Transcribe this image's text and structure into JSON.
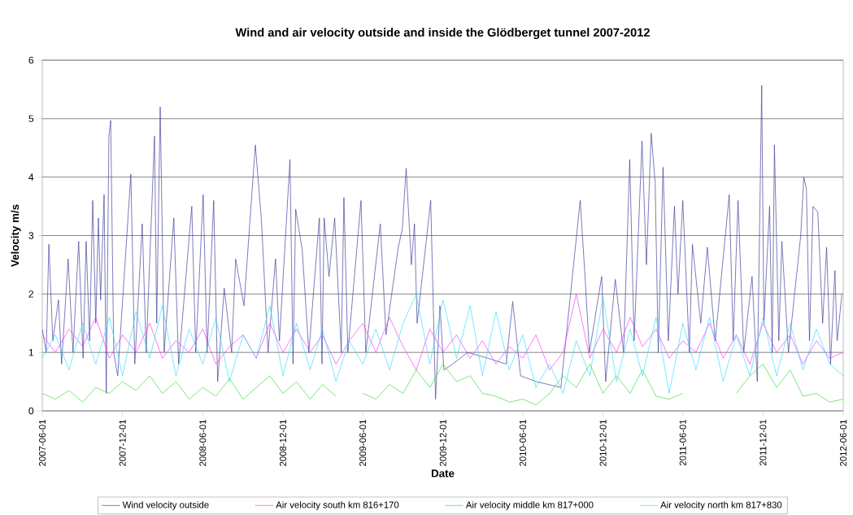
{
  "chart_data": {
    "type": "line",
    "title": "Wind and air velocity outside and inside the Glödberget tunnel 2007-2012",
    "xlabel": "Date",
    "ylabel": "Velocity m/s",
    "xlim": [
      "2007-06-01",
      "2012-06-01"
    ],
    "xticks": [
      "2007-06-01",
      "2007-12-01",
      "2008-06-01",
      "2008-12-01",
      "2009-06-01",
      "2009-12-01",
      "2010-06-01",
      "2010-12-01",
      "2011-06-01",
      "2011-12-01",
      "2012-06-01"
    ],
    "ylim": [
      0,
      6
    ],
    "yticks": [
      0,
      1,
      2,
      3,
      4,
      5,
      6
    ],
    "grid": "y",
    "legend": "bottom",
    "marker": "none",
    "line_style": "solid",
    "series": [
      {
        "name": "Wind velocity outside",
        "color": "#3a3a9a",
        "x": [
          "2007-06-01",
          "2007-06-10",
          "2007-06-16",
          "2007-06-25",
          "2007-07-08",
          "2007-07-15",
          "2007-07-30",
          "2007-08-10",
          "2007-08-23",
          "2007-09-02",
          "2007-09-09",
          "2007-09-17",
          "2007-09-24",
          "2007-10-01",
          "2007-10-07",
          "2007-10-12",
          "2007-10-20",
          "2007-10-25",
          "2007-10-31",
          "2007-11-04",
          "2007-11-11",
          "2007-11-20",
          "2007-12-20",
          "2007-12-29",
          "2008-01-15",
          "2008-01-24",
          "2008-02-12",
          "2008-02-17",
          "2008-02-25",
          "2008-03-05",
          "2008-03-27",
          "2008-04-07",
          "2008-05-07",
          "2008-05-16",
          "2008-06-02",
          "2008-06-11",
          "2008-06-26",
          "2008-07-05",
          "2008-07-20",
          "2008-08-06",
          "2008-08-15",
          "2008-09-03",
          "2008-09-29",
          "2008-10-13",
          "2008-10-28",
          "2008-11-14",
          "2008-11-23",
          "2008-12-17",
          "2008-12-24",
          "2008-12-30",
          "2009-01-14",
          "2009-01-29",
          "2009-02-22",
          "2009-02-28",
          "2009-03-05",
          "2009-03-16",
          "2009-03-29",
          "2009-04-13",
          "2009-04-19",
          "2009-04-28",
          "2009-05-28",
          "2009-06-08",
          "2009-07-11",
          "2009-07-24",
          "2009-08-21",
          "2009-08-30",
          "2009-09-08",
          "2009-09-20",
          "2009-09-27",
          "2009-10-03",
          "2009-11-03",
          "2009-11-14",
          "2009-11-24",
          "2009-12-03",
          "2009-12-23",
          "2010-01-26",
          "2010-03-14",
          "2010-04-24",
          "2010-05-09",
          "2010-05-27",
          "2010-07-02",
          "2010-08-27",
          "2010-10-10",
          "2010-10-21",
          "2010-10-31",
          "2010-11-28",
          "2010-12-07",
          "2010-12-29",
          "2011-01-17",
          "2011-01-31",
          "2011-02-10",
          "2011-02-28",
          "2011-03-10",
          "2011-03-21",
          "2011-03-30",
          "2011-04-06",
          "2011-04-17",
          "2011-04-29",
          "2011-05-13",
          "2011-05-21",
          "2011-06-01",
          "2011-06-16",
          "2011-06-23",
          "2011-07-12",
          "2011-07-27",
          "2011-08-14",
          "2011-09-15",
          "2011-09-24",
          "2011-10-05",
          "2011-10-18",
          "2011-11-06",
          "2011-11-18",
          "2011-11-28",
          "2011-12-03",
          "2011-12-16",
          "2011-12-22",
          "2011-12-27",
          "2012-01-06",
          "2012-01-13",
          "2012-01-28",
          "2012-02-25",
          "2012-03-03",
          "2012-03-09",
          "2012-03-16",
          "2012-03-24",
          "2012-04-04",
          "2012-04-15",
          "2012-04-24",
          "2012-05-03",
          "2012-05-13",
          "2012-05-18",
          "2012-05-29"
        ],
        "values": [
          1.4,
          1.0,
          2.85,
          1.2,
          1.9,
          0.8,
          2.6,
          1.0,
          2.9,
          0.9,
          2.9,
          1.2,
          3.6,
          1.5,
          3.3,
          1.9,
          3.7,
          0.3,
          4.7,
          4.97,
          1.0,
          0.6,
          4.05,
          0.8,
          3.2,
          1.0,
          4.7,
          1.5,
          5.2,
          1.0,
          3.3,
          0.8,
          3.5,
          1.0,
          3.7,
          1.0,
          3.6,
          0.5,
          2.1,
          1.0,
          2.6,
          1.8,
          4.55,
          3.25,
          1.0,
          2.6,
          1.2,
          4.3,
          0.8,
          3.45,
          2.75,
          1.0,
          3.3,
          0.8,
          3.3,
          2.3,
          3.3,
          1.0,
          3.65,
          1.0,
          3.6,
          1.0,
          3.2,
          1.3,
          2.8,
          3.1,
          4.15,
          2.5,
          3.2,
          1.5,
          3.6,
          0.2,
          1.8,
          0.7,
          0.8,
          1.0,
          0.9,
          0.8,
          1.87,
          0.6,
          0.5,
          0.4,
          3.6,
          2.3,
          1.0,
          2.3,
          0.5,
          2.25,
          1.0,
          4.3,
          1.2,
          4.62,
          2.5,
          4.75,
          3.9,
          1.0,
          4.17,
          1.2,
          3.5,
          2.0,
          3.6,
          1.0,
          2.85,
          1.5,
          2.8,
          1.2,
          3.7,
          1.2,
          3.6,
          1.0,
          2.3,
          0.5,
          5.57,
          1.5,
          3.5,
          1.0,
          4.55,
          1.2,
          2.9,
          1.0,
          3.0,
          4.0,
          3.8,
          1.2,
          3.5,
          3.4,
          1.5,
          2.8,
          0.8,
          2.4,
          1.2,
          2.0
        ]
      },
      {
        "name": "Air velocity south km 816+170",
        "color": "#ff33ff",
        "x": [
          "2007-06-01",
          "2007-07-01",
          "2007-08-01",
          "2007-09-01",
          "2007-10-01",
          "2007-11-01",
          "2007-12-01",
          "2008-01-01",
          "2008-02-01",
          "2008-03-01",
          "2008-04-01",
          "2008-05-01",
          "2008-06-01",
          "2008-07-01",
          "2008-08-01",
          "2008-09-01",
          "2008-10-01",
          "2008-11-01",
          "2008-12-01",
          "2009-01-01",
          "2009-02-01",
          "2009-03-01",
          "2009-04-01",
          "2009-05-01",
          "2009-06-01",
          "2009-07-01",
          "2009-08-01",
          "2009-09-01",
          "2009-10-01",
          "2009-11-01",
          "2009-12-01",
          "2010-01-01",
          "2010-02-01",
          "2010-03-01",
          "2010-04-01",
          "2010-05-01",
          "2010-06-01",
          "2010-07-01",
          "2010-08-01",
          "2010-09-01",
          "2010-10-01",
          "2010-11-01",
          "2010-12-01",
          "2011-01-01",
          "2011-02-01",
          "2011-03-01",
          "2011-04-01",
          "2011-05-01",
          "2011-06-01",
          "2011-07-01",
          "2011-08-01",
          "2011-09-01",
          "2011-10-01",
          "2011-11-01",
          "2011-12-01",
          "2012-01-01",
          "2012-02-01",
          "2012-03-01",
          "2012-04-01",
          "2012-05-01",
          "2012-06-01"
        ],
        "values": [
          1.3,
          1.0,
          1.4,
          1.1,
          1.6,
          0.9,
          1.3,
          1.0,
          1.5,
          0.9,
          1.2,
          1.0,
          1.4,
          0.8,
          1.1,
          1.3,
          0.9,
          1.5,
          1.0,
          1.4,
          1.0,
          1.3,
          0.8,
          1.2,
          1.5,
          1.0,
          1.6,
          1.1,
          0.7,
          1.4,
          1.0,
          1.3,
          0.9,
          1.2,
          0.8,
          1.1,
          0.9,
          1.3,
          0.7,
          1.0,
          2.0,
          0.9,
          1.4,
          1.0,
          1.6,
          1.1,
          1.4,
          0.9,
          1.2,
          1.0,
          1.5,
          0.9,
          1.3,
          0.8,
          1.5,
          1.0,
          1.3,
          0.8,
          1.2,
          0.9,
          1.0
        ]
      },
      {
        "name": "Air velocity middle km 817+000",
        "color": "#33dd33",
        "x": [
          "2007-06-01",
          "2007-07-01",
          "2007-08-01",
          "2007-09-01",
          "2007-10-01",
          "2007-11-01",
          "2007-12-01",
          "2008-01-01",
          "2008-02-01",
          "2008-03-01",
          "2008-04-01",
          "2008-05-01",
          "2008-06-01",
          "2008-07-01",
          "2008-08-01",
          "2008-09-01",
          "2008-10-01",
          "2008-11-01",
          "2008-12-01",
          "2009-01-01",
          "2009-02-01",
          "2009-03-01",
          "2009-04-01",
          "2009-05-01",
          "2009-06-01",
          "2009-07-01",
          "2009-08-01",
          "2009-09-01",
          "2009-10-01",
          "2009-11-01",
          "2009-12-01",
          "2010-01-01",
          "2010-02-01",
          "2010-03-01",
          "2010-04-01",
          "2010-05-01",
          "2010-06-01",
          "2010-07-01",
          "2010-08-01",
          "2010-09-01",
          "2010-10-01",
          "2010-11-01",
          "2010-12-01",
          "2011-01-01",
          "2011-02-01",
          "2011-03-01",
          "2011-04-01",
          "2011-05-01",
          "2011-06-01",
          "2011-07-01",
          "2011-08-01",
          "2011-09-01",
          "2011-10-01",
          "2011-11-01",
          "2011-12-01",
          "2012-01-01",
          "2012-02-01",
          "2012-03-01",
          "2012-04-01",
          "2012-05-01",
          "2012-06-01"
        ],
        "values": [
          0.3,
          0.2,
          0.35,
          0.15,
          0.4,
          0.3,
          0.5,
          0.35,
          0.6,
          0.3,
          0.5,
          0.2,
          0.4,
          0.25,
          0.55,
          0.2,
          0.4,
          0.6,
          0.3,
          0.5,
          0.2,
          0.45,
          0.25,
          null,
          0.3,
          0.2,
          0.45,
          0.3,
          0.7,
          0.4,
          0.8,
          0.5,
          0.6,
          0.3,
          0.25,
          0.15,
          0.2,
          0.1,
          0.3,
          0.6,
          0.4,
          0.8,
          0.3,
          0.6,
          0.3,
          0.7,
          0.25,
          0.2,
          0.3,
          null,
          null,
          null,
          0.3,
          0.6,
          0.8,
          0.4,
          0.7,
          0.25,
          0.3,
          0.15,
          0.2
        ]
      },
      {
        "name": "Air velocity north km 817+830",
        "color": "#33ddff",
        "x": [
          "2007-06-01",
          "2007-07-01",
          "2007-08-01",
          "2007-09-01",
          "2007-10-01",
          "2007-11-01",
          "2007-12-01",
          "2008-01-01",
          "2008-02-01",
          "2008-03-01",
          "2008-04-01",
          "2008-05-01",
          "2008-06-01",
          "2008-07-01",
          "2008-08-01",
          "2008-09-01",
          "2008-10-01",
          "2008-11-01",
          "2008-12-01",
          "2009-01-01",
          "2009-02-01",
          "2009-03-01",
          "2009-04-01",
          "2009-05-01",
          "2009-06-01",
          "2009-07-01",
          "2009-08-01",
          "2009-09-01",
          "2009-10-01",
          "2009-11-01",
          "2009-12-01",
          "2010-01-01",
          "2010-02-01",
          "2010-03-01",
          "2010-04-01",
          "2010-05-01",
          "2010-06-01",
          "2010-07-01",
          "2010-08-01",
          "2010-09-01",
          "2010-10-01",
          "2010-11-01",
          "2010-12-01",
          "2011-01-01",
          "2011-02-01",
          "2011-03-01",
          "2011-04-01",
          "2011-05-01",
          "2011-06-01",
          "2011-07-01",
          "2011-08-01",
          "2011-09-01",
          "2011-10-01",
          "2011-11-01",
          "2011-12-01",
          "2012-01-01",
          "2012-02-01",
          "2012-03-01",
          "2012-04-01",
          "2012-05-01",
          "2012-06-01"
        ],
        "values": [
          0.9,
          1.3,
          0.7,
          1.5,
          0.8,
          1.6,
          0.6,
          1.7,
          0.9,
          1.8,
          0.6,
          1.4,
          0.8,
          1.6,
          0.5,
          1.3,
          0.9,
          1.8,
          0.6,
          1.5,
          0.7,
          1.4,
          0.5,
          1.2,
          0.8,
          1.4,
          0.7,
          1.5,
          2.0,
          0.8,
          1.9,
          0.9,
          1.8,
          0.6,
          1.7,
          0.7,
          1.3,
          0.4,
          0.8,
          0.3,
          1.2,
          0.6,
          1.95,
          0.5,
          1.4,
          0.6,
          1.6,
          0.3,
          1.5,
          0.7,
          1.6,
          0.5,
          1.3,
          0.6,
          1.6,
          0.6,
          1.5,
          0.7,
          1.4,
          0.8,
          0.6
        ]
      }
    ]
  }
}
